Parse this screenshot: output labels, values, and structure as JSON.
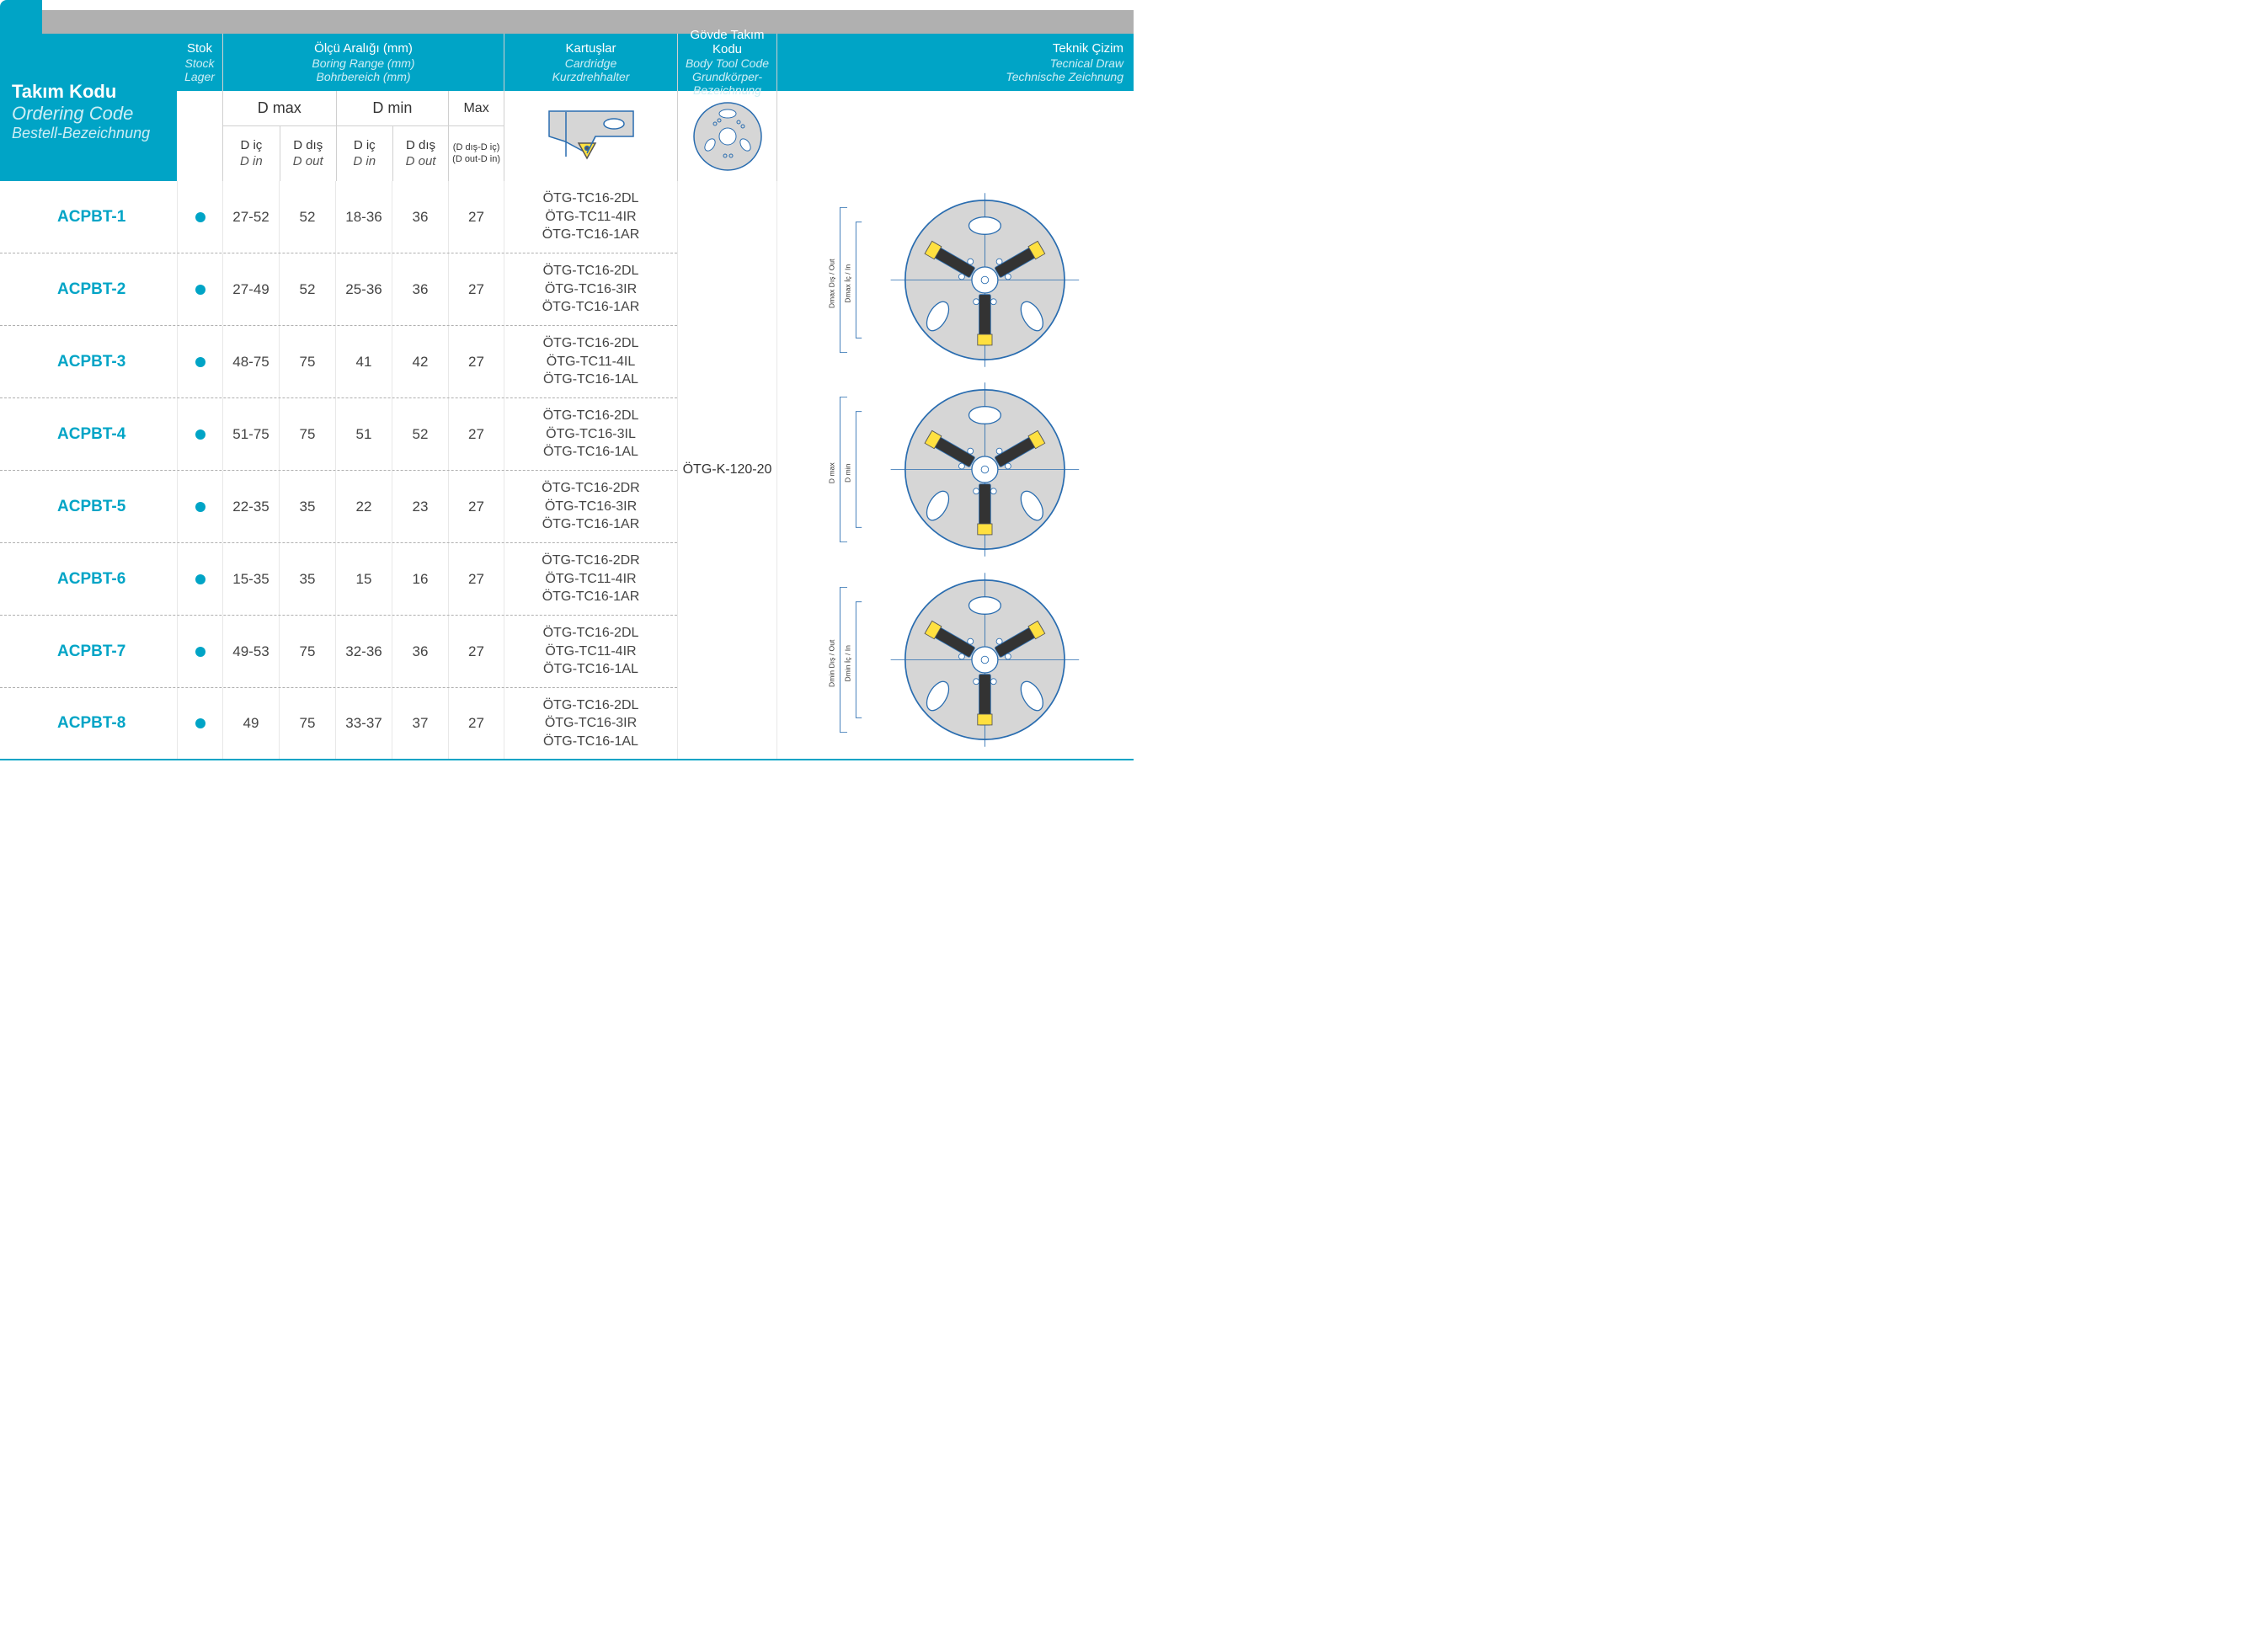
{
  "colors": {
    "cyan": "#00a4c6",
    "cyan_light": "#cdeef5",
    "grey_bar": "#b0b0b0",
    "text": "#444444",
    "border": "#d0d0d0",
    "tech_line": "#2a6db0",
    "tech_fill": "#d6d6d6",
    "insert_yellow": "#ffe040"
  },
  "corner": {
    "line1": "Takım Kodu",
    "line2": "Ordering Code",
    "line3": "Bestell-Bezeichnung"
  },
  "headers": {
    "stok": {
      "tr": "Stok",
      "en": "Stock",
      "de": "Lager"
    },
    "range": {
      "tr": "Ölçü Aralığı (mm)",
      "en": "Boring Range (mm)",
      "de": "Bohrbereich (mm)"
    },
    "cart": {
      "tr": "Kartuşlar",
      "en": "Cardridge",
      "de": "Kurzdrehhalter"
    },
    "body": {
      "tr": "Gövde Takım Kodu",
      "en": "Body Tool Code",
      "de": "Grundkörper-Bezeichnung"
    },
    "draw": {
      "tr": "Teknik Çizim",
      "en": "Tecnical Draw",
      "de": "Technische Zeichnung"
    }
  },
  "sub": {
    "dmax": "D max",
    "dmin": "D min",
    "max": "Max",
    "din_tr": "D iç",
    "din_en": "D in",
    "dout_tr": "D dış",
    "dout_en": "D out",
    "max_l1": "(D dış-D iç)",
    "max_l2": "(D out-D in)"
  },
  "body_code": "ÖTG-K-120-20",
  "rows": [
    {
      "code": "ACPBT-1",
      "stok": true,
      "dmax_in": "27-52",
      "dmax_out": "52",
      "dmin_in": "18-36",
      "dmin_out": "36",
      "max": "27",
      "cart": [
        "ÖTG-TC16-2DL",
        "ÖTG-TC11-4IR",
        "ÖTG-TC16-1AR"
      ]
    },
    {
      "code": "ACPBT-2",
      "stok": true,
      "dmax_in": "27-49",
      "dmax_out": "52",
      "dmin_in": "25-36",
      "dmin_out": "36",
      "max": "27",
      "cart": [
        "ÖTG-TC16-2DL",
        "ÖTG-TC16-3IR",
        "ÖTG-TC16-1AR"
      ]
    },
    {
      "code": "ACPBT-3",
      "stok": true,
      "dmax_in": "48-75",
      "dmax_out": "75",
      "dmin_in": "41",
      "dmin_out": "42",
      "max": "27",
      "cart": [
        "ÖTG-TC16-2DL",
        "ÖTG-TC11-4IL",
        "ÖTG-TC16-1AL"
      ]
    },
    {
      "code": "ACPBT-4",
      "stok": true,
      "dmax_in": "51-75",
      "dmax_out": "75",
      "dmin_in": "51",
      "dmin_out": "52",
      "max": "27",
      "cart": [
        "ÖTG-TC16-2DL",
        "ÖTG-TC16-3IL",
        "ÖTG-TC16-1AL"
      ]
    },
    {
      "code": "ACPBT-5",
      "stok": true,
      "dmax_in": "22-35",
      "dmax_out": "35",
      "dmin_in": "22",
      "dmin_out": "23",
      "max": "27",
      "cart": [
        "ÖTG-TC16-2DR",
        "ÖTG-TC16-3IR",
        "ÖTG-TC16-1AR"
      ]
    },
    {
      "code": "ACPBT-6",
      "stok": true,
      "dmax_in": "15-35",
      "dmax_out": "35",
      "dmin_in": "15",
      "dmin_out": "16",
      "max": "27",
      "cart": [
        "ÖTG-TC16-2DR",
        "ÖTG-TC11-4IR",
        "ÖTG-TC16-1AR"
      ]
    },
    {
      "code": "ACPBT-7",
      "stok": true,
      "dmax_in": "49-53",
      "dmax_out": "75",
      "dmin_in": "32-36",
      "dmin_out": "36",
      "max": "27",
      "cart": [
        "ÖTG-TC16-2DL",
        "ÖTG-TC11-4IR",
        "ÖTG-TC16-1AL"
      ]
    },
    {
      "code": "ACPBT-8",
      "stok": true,
      "dmax_in": "49",
      "dmax_out": "75",
      "dmin_in": "33-37",
      "dmin_out": "37",
      "max": "27",
      "cart": [
        "ÖTG-TC16-2DL",
        "ÖTG-TC16-3IR",
        "ÖTG-TC16-1AL"
      ]
    }
  ],
  "tech_labels": {
    "dmax_out": "Dmax Dış / Out",
    "dmax_in": "Dmax İç / In",
    "dmax": "D max",
    "dmin": "D min",
    "dmin_out": "Dmin Dış / Out",
    "dmin_in": "Dmin İç / In"
  }
}
